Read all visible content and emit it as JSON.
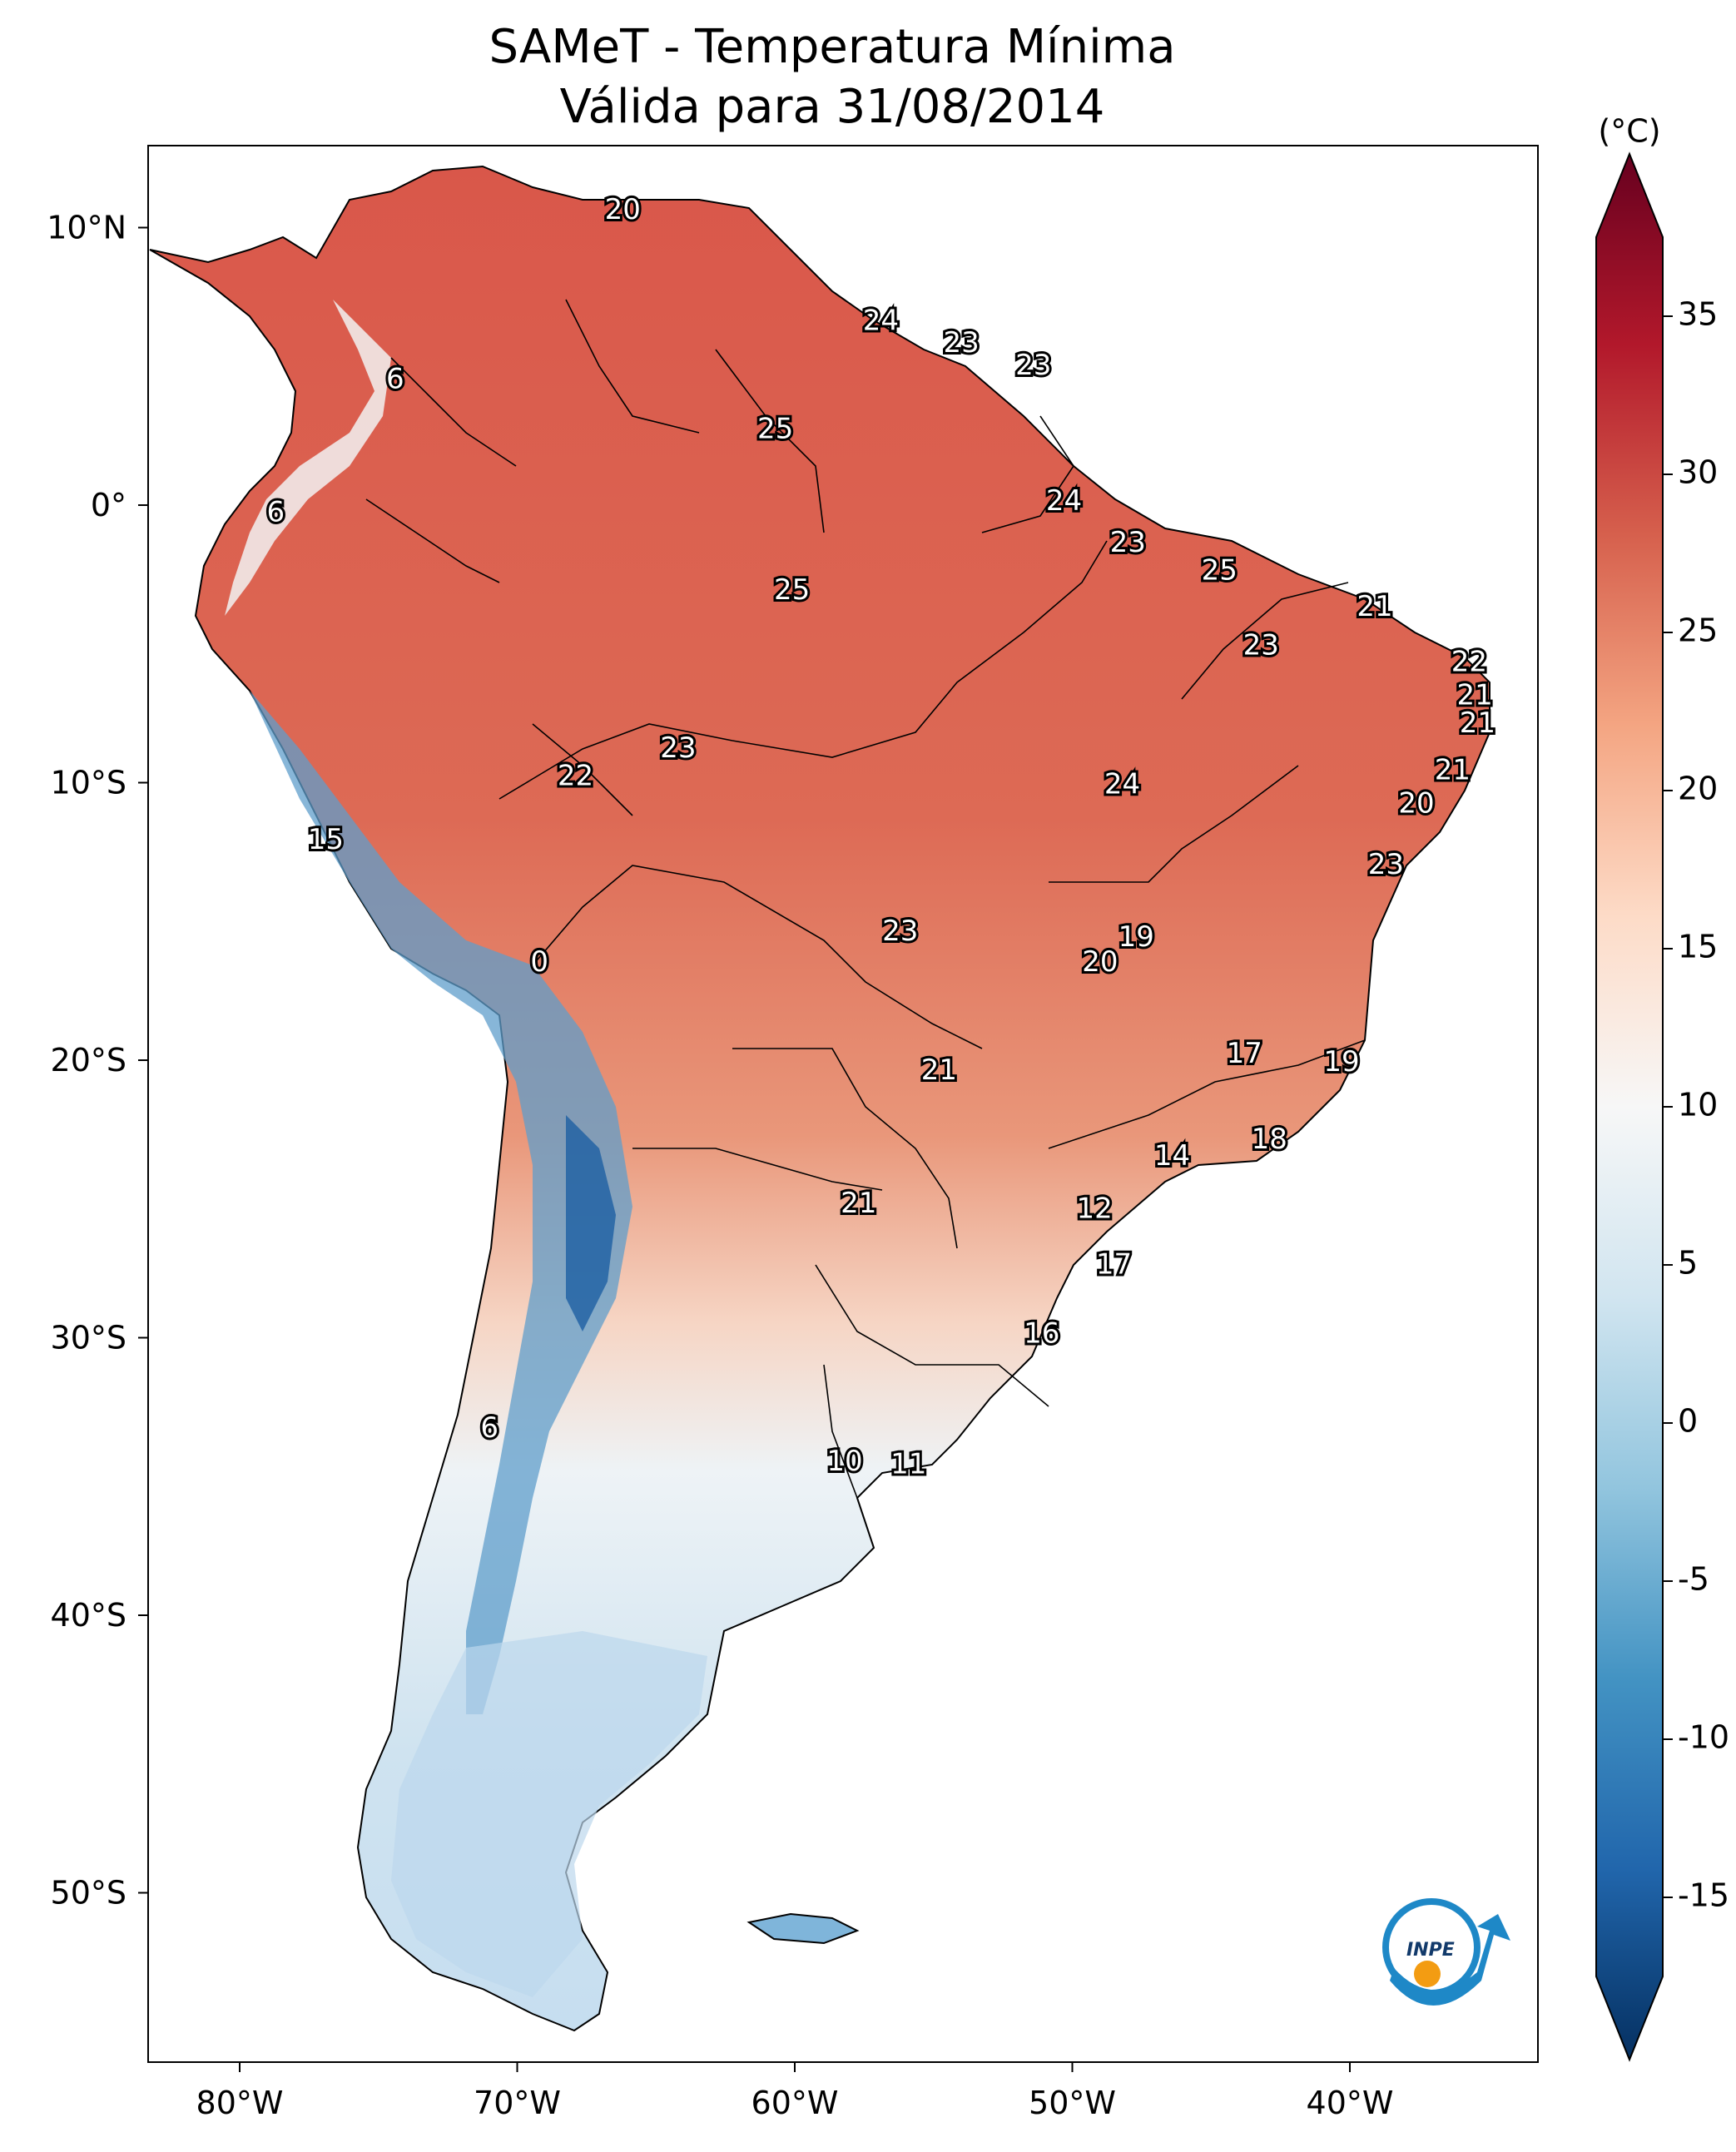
{
  "title": "SAMeT - Temperatura Mínima",
  "subtitle": "Válida para 31/08/2014",
  "colorbar": {
    "unit": "(°C)",
    "ticks": [
      "35",
      "30",
      "25",
      "20",
      "15",
      "10",
      "5",
      "0",
      "-5",
      "-10",
      "-15"
    ],
    "colors": [
      "#67001f",
      "#b2182b",
      "#d6604d",
      "#f4a582",
      "#fddbc7",
      "#f7f7f7",
      "#d1e5f0",
      "#92c5de",
      "#4393c3",
      "#2166ac",
      "#053061"
    ]
  },
  "axes": {
    "lon_ticks": [
      "80°W",
      "70°W",
      "60°W",
      "50°W",
      "40°W"
    ],
    "lat_ticks": [
      "10°N",
      "0°",
      "10°S",
      "20°S",
      "30°S",
      "40°S",
      "50°S"
    ]
  },
  "logo": "INPE",
  "labels": [
    {
      "t": "20",
      "lon": -66.2,
      "lat": 10.6
    },
    {
      "t": "24",
      "lon": -56.9,
      "lat": 6.6
    },
    {
      "t": "23",
      "lon": -54.0,
      "lat": 5.8
    },
    {
      "t": "23",
      "lon": -51.4,
      "lat": 5.0
    },
    {
      "t": "6",
      "lon": -74.4,
      "lat": 4.5
    },
    {
      "t": "25",
      "lon": -60.7,
      "lat": 2.7
    },
    {
      "t": "24",
      "lon": -50.3,
      "lat": 0.1
    },
    {
      "t": "6",
      "lon": -78.7,
      "lat": -0.3
    },
    {
      "t": "23",
      "lon": -48.0,
      "lat": -1.4
    },
    {
      "t": "25",
      "lon": -44.7,
      "lat": -2.4
    },
    {
      "t": "25",
      "lon": -60.1,
      "lat": -3.1
    },
    {
      "t": "21",
      "lon": -39.1,
      "lat": -3.7
    },
    {
      "t": "23",
      "lon": -43.2,
      "lat": -5.1
    },
    {
      "t": "22",
      "lon": -35.7,
      "lat": -5.7
    },
    {
      "t": "21",
      "lon": -35.5,
      "lat": -6.9
    },
    {
      "t": "21",
      "lon": -35.4,
      "lat": -7.9
    },
    {
      "t": "23",
      "lon": -64.2,
      "lat": -8.8
    },
    {
      "t": "22",
      "lon": -67.9,
      "lat": -9.8
    },
    {
      "t": "21",
      "lon": -36.3,
      "lat": -9.6
    },
    {
      "t": "24",
      "lon": -48.2,
      "lat": -10.1
    },
    {
      "t": "20",
      "lon": -37.6,
      "lat": -10.8
    },
    {
      "t": "15",
      "lon": -76.9,
      "lat": -12.1
    },
    {
      "t": "23",
      "lon": -38.7,
      "lat": -13.0
    },
    {
      "t": "23",
      "lon": -56.2,
      "lat": -15.4
    },
    {
      "t": "19",
      "lon": -47.7,
      "lat": -15.6
    },
    {
      "t": "0",
      "lon": -69.2,
      "lat": -16.5
    },
    {
      "t": "20",
      "lon": -49.0,
      "lat": -16.5
    },
    {
      "t": "17",
      "lon": -43.8,
      "lat": -19.8
    },
    {
      "t": "19",
      "lon": -40.3,
      "lat": -20.1
    },
    {
      "t": "21",
      "lon": -54.8,
      "lat": -20.4
    },
    {
      "t": "18",
      "lon": -42.9,
      "lat": -22.9
    },
    {
      "t": "14",
      "lon": -46.4,
      "lat": -23.5
    },
    {
      "t": "21",
      "lon": -57.7,
      "lat": -25.2
    },
    {
      "t": "12",
      "lon": -49.2,
      "lat": -25.4
    },
    {
      "t": "17",
      "lon": -48.5,
      "lat": -27.4
    },
    {
      "t": "16",
      "lon": -51.1,
      "lat": -29.9
    },
    {
      "t": "6",
      "lon": -71.0,
      "lat": -33.3
    },
    {
      "t": "10",
      "lon": -58.2,
      "lat": -34.5
    },
    {
      "t": "11",
      "lon": -55.9,
      "lat": -34.6
    }
  ]
}
